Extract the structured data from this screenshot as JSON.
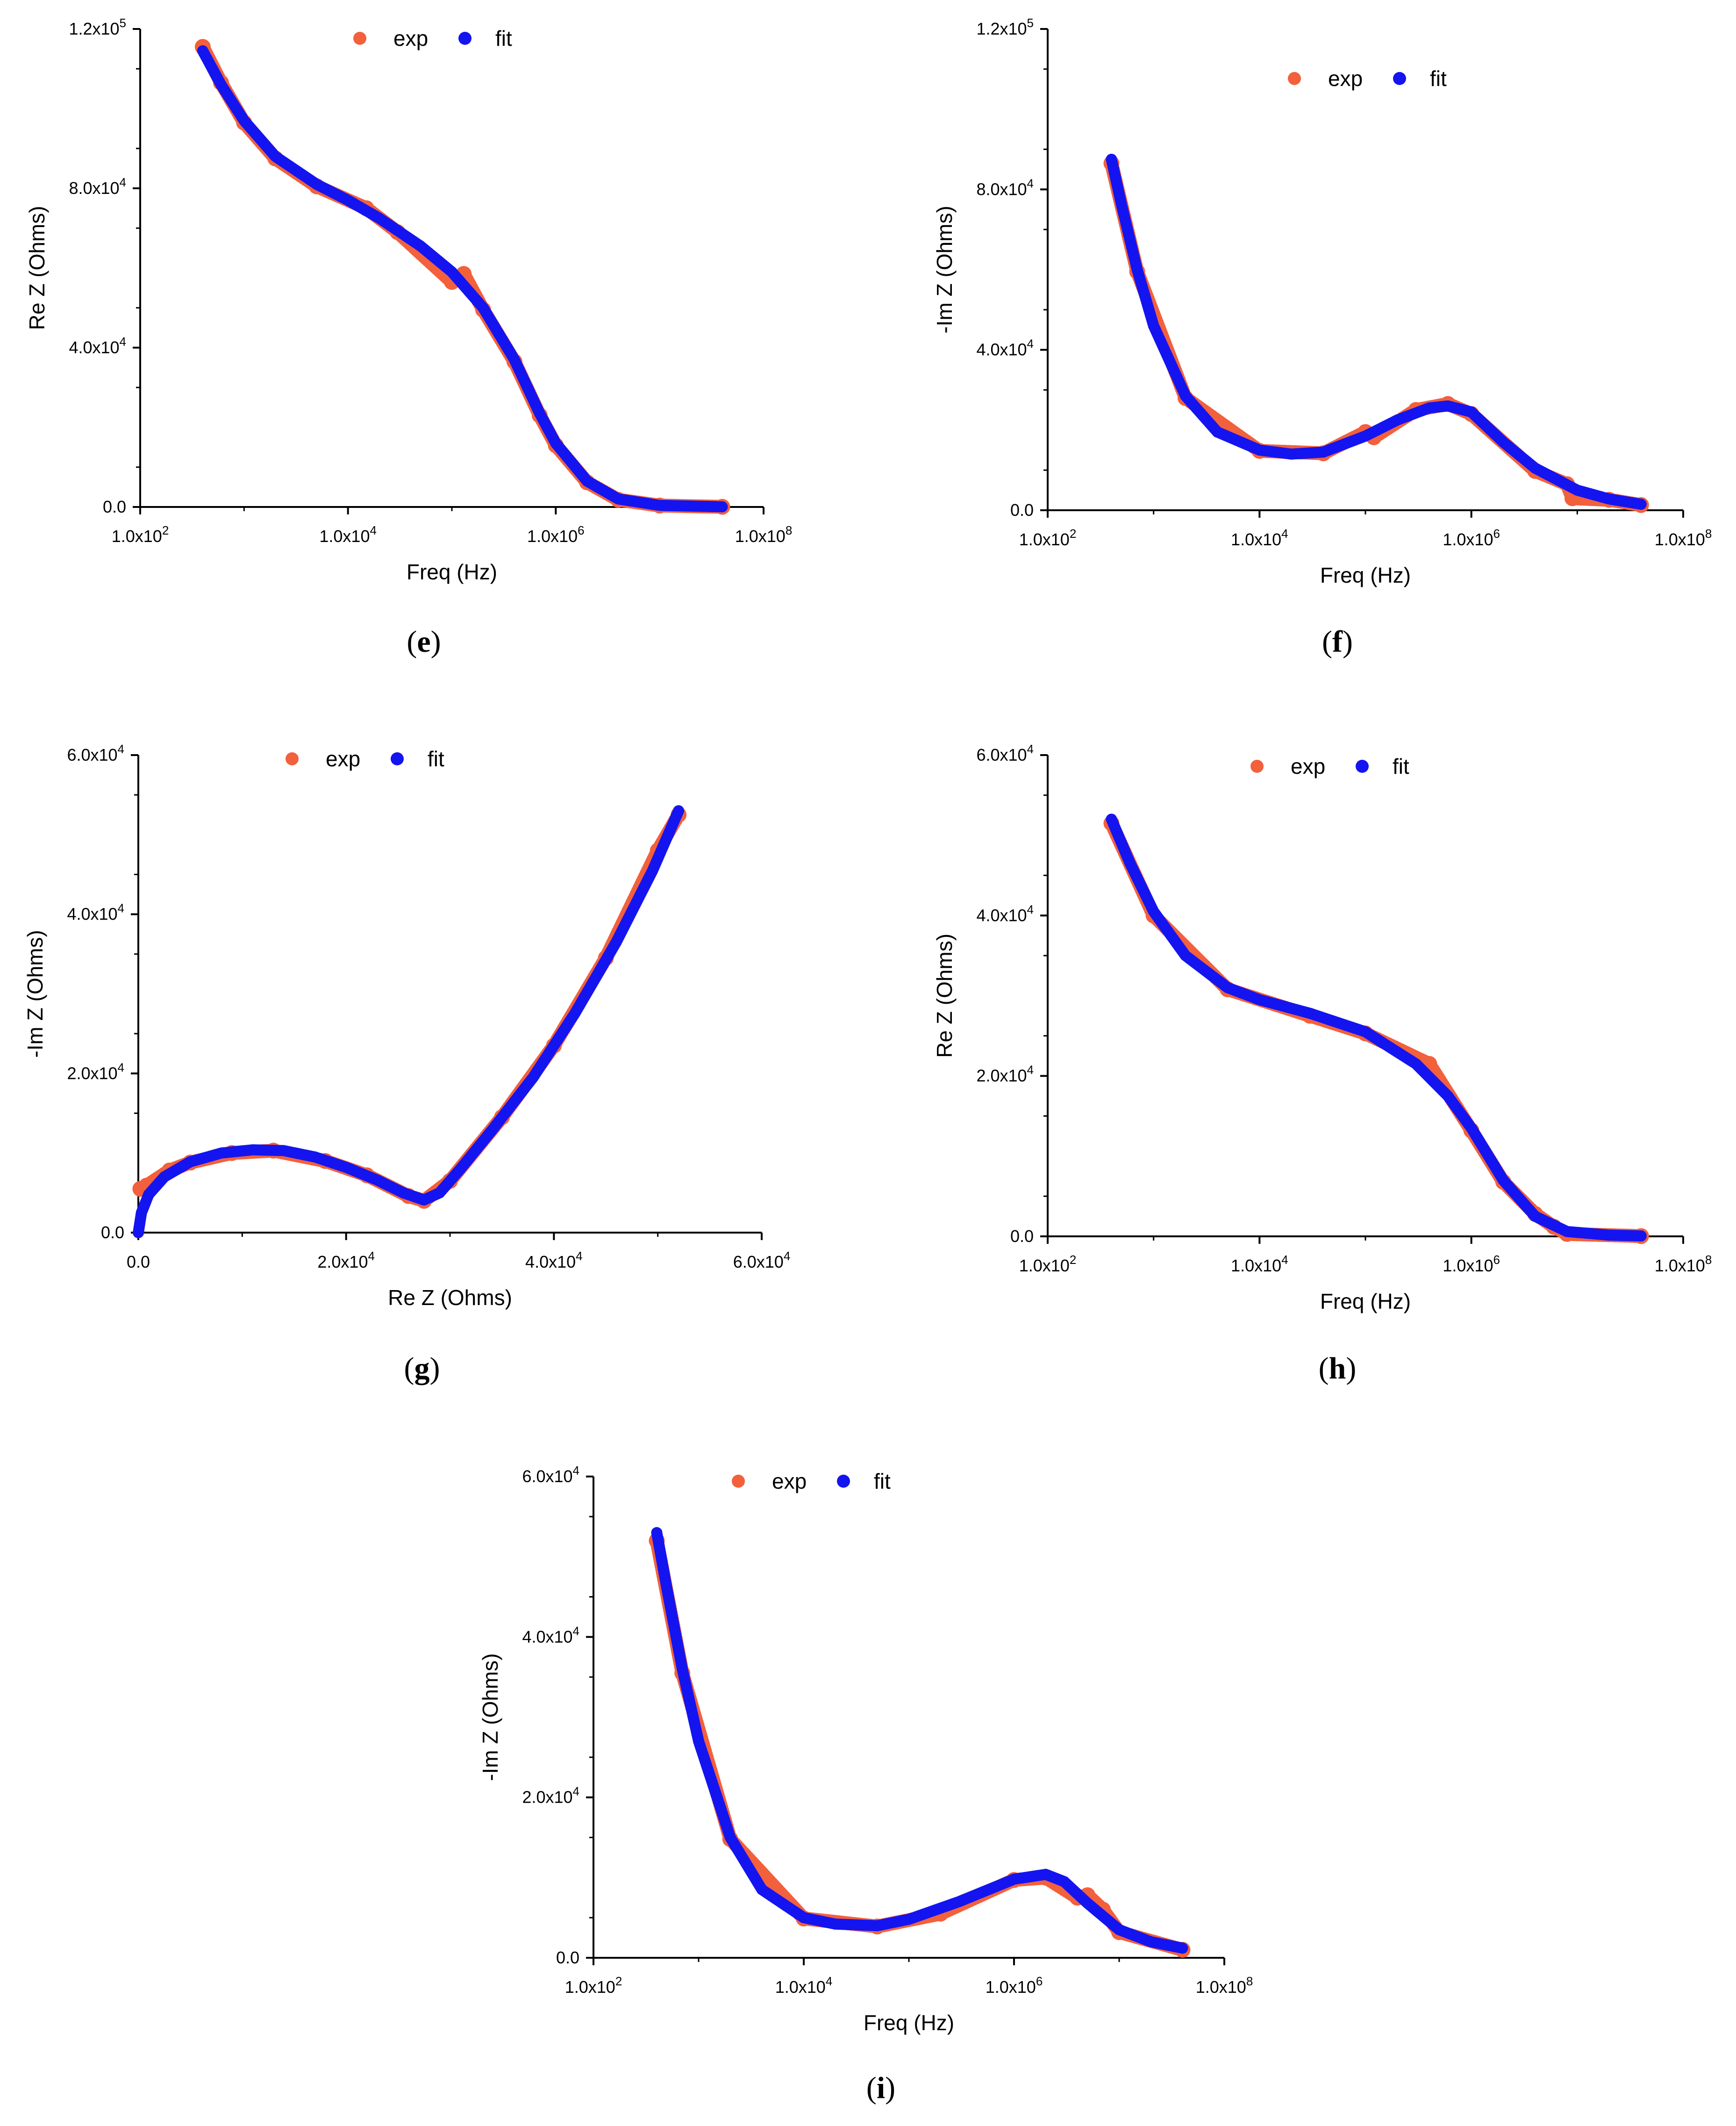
{
  "colors": {
    "exp": "#F2603C",
    "fit": "#1414F0"
  },
  "chart_data": [
    {
      "id": "e",
      "type": "scatter",
      "panel_label": "e",
      "xlabel": "Freq (Hz)",
      "ylabel": "Re Z (Ohms)",
      "xscale": "log",
      "xlim": [
        100,
        100000000
      ],
      "ylim": [
        0,
        120000
      ],
      "xticks": [
        {
          "mant": "1.0x10",
          "exp": "2"
        },
        {
          "mant": "1.0x10",
          "exp": "4"
        },
        {
          "mant": "1.0x10",
          "exp": "6"
        },
        {
          "mant": "1.0x10",
          "exp": "8"
        }
      ],
      "yticks": [
        {
          "mant": "0.0",
          "exp": ""
        },
        {
          "mant": "4.0x10",
          "exp": "4"
        },
        {
          "mant": "8.0x10",
          "exp": "4"
        },
        {
          "mant": "1.2x10",
          "exp": "5"
        }
      ],
      "legend": [
        "exp",
        "fit"
      ],
      "fit": [
        [
          400,
          114500
        ],
        [
          600,
          106000
        ],
        [
          1000,
          97000
        ],
        [
          2000,
          88000
        ],
        [
          5000,
          81000
        ],
        [
          10000,
          77000
        ],
        [
          20000,
          72500
        ],
        [
          50000,
          65500
        ],
        [
          100000,
          59000
        ],
        [
          200000,
          50000
        ],
        [
          400000,
          37000
        ],
        [
          700000,
          23500
        ],
        [
          1000000,
          16000
        ],
        [
          2000000,
          6500
        ],
        [
          4000000,
          2000
        ],
        [
          10000000,
          400
        ],
        [
          40000000,
          50
        ]
      ],
      "exp": [
        [
          400,
          115500
        ],
        [
          600,
          106500
        ],
        [
          1000,
          96500
        ],
        [
          2000,
          87500
        ],
        [
          5000,
          80500
        ],
        [
          15000,
          75000
        ],
        [
          30000,
          69000
        ],
        [
          100000,
          56500
        ],
        [
          130000,
          58500
        ],
        [
          200000,
          49500
        ],
        [
          400000,
          36500
        ],
        [
          700000,
          23000
        ],
        [
          1000000,
          15500
        ],
        [
          2000000,
          6200
        ],
        [
          4000000,
          1800
        ],
        [
          10000000,
          350
        ],
        [
          40000000,
          40
        ]
      ]
    },
    {
      "id": "f",
      "type": "scatter",
      "panel_label": "f",
      "xlabel": "Freq (Hz)",
      "ylabel": "-Im Z (Ohms)",
      "xscale": "log",
      "xlim": [
        100,
        100000000
      ],
      "ylim": [
        0,
        120000
      ],
      "xticks": [
        {
          "mant": "1.0x10",
          "exp": "2"
        },
        {
          "mant": "1.0x10",
          "exp": "4"
        },
        {
          "mant": "1.0x10",
          "exp": "6"
        },
        {
          "mant": "1.0x10",
          "exp": "8"
        }
      ],
      "yticks": [
        {
          "mant": "0.0",
          "exp": ""
        },
        {
          "mant": "4.0x10",
          "exp": "4"
        },
        {
          "mant": "8.0x10",
          "exp": "4"
        },
        {
          "mant": "1.2x10",
          "exp": "5"
        }
      ],
      "legend": [
        "exp",
        "fit"
      ],
      "fit": [
        [
          400,
          87500
        ],
        [
          500,
          76000
        ],
        [
          700,
          60000
        ],
        [
          1000,
          46000
        ],
        [
          2000,
          28500
        ],
        [
          4000,
          19500
        ],
        [
          10000,
          15000
        ],
        [
          20000,
          14000
        ],
        [
          40000,
          14500
        ],
        [
          100000,
          18500
        ],
        [
          200000,
          22500
        ],
        [
          400000,
          25500
        ],
        [
          600000,
          26000
        ],
        [
          1000000,
          24500
        ],
        [
          2000000,
          17000
        ],
        [
          4000000,
          10500
        ],
        [
          10000000,
          5000
        ],
        [
          20000000,
          2800
        ],
        [
          40000000,
          1500
        ]
      ],
      "exp": [
        [
          400,
          86500
        ],
        [
          700,
          59500
        ],
        [
          2000,
          28000
        ],
        [
          10000,
          14800
        ],
        [
          40000,
          14200
        ],
        [
          100000,
          19500
        ],
        [
          120000,
          18200
        ],
        [
          300000,
          25000
        ],
        [
          600000,
          26500
        ],
        [
          1000000,
          24000
        ],
        [
          4000000,
          9800
        ],
        [
          8000000,
          6500
        ],
        [
          9000000,
          3000
        ],
        [
          20000000,
          2600
        ],
        [
          40000000,
          1300
        ]
      ]
    },
    {
      "id": "g",
      "type": "scatter",
      "panel_label": "g",
      "xlabel": "Re Z (Ohms)",
      "ylabel": "-Im Z (Ohms)",
      "xscale": "linear",
      "xlim": [
        0,
        60000
      ],
      "ylim": [
        0,
        60000
      ],
      "xticks": [
        {
          "mant": "0.0",
          "exp": ""
        },
        {
          "mant": "2.0x10",
          "exp": "4"
        },
        {
          "mant": "4.0x10",
          "exp": "4"
        },
        {
          "mant": "6.0x10",
          "exp": "4"
        }
      ],
      "yticks": [
        {
          "mant": "0.0",
          "exp": ""
        },
        {
          "mant": "2.0x10",
          "exp": "4"
        },
        {
          "mant": "4.0x10",
          "exp": "4"
        },
        {
          "mant": "6.0x10",
          "exp": "4"
        }
      ],
      "legend": [
        "exp",
        "fit"
      ],
      "fit": [
        [
          0,
          0
        ],
        [
          300,
          2500
        ],
        [
          1000,
          4800
        ],
        [
          2500,
          7000
        ],
        [
          5000,
          8900
        ],
        [
          8000,
          10000
        ],
        [
          11000,
          10400
        ],
        [
          14000,
          10300
        ],
        [
          17000,
          9500
        ],
        [
          20000,
          8200
        ],
        [
          23000,
          6600
        ],
        [
          25500,
          5000
        ],
        [
          27500,
          4100
        ],
        [
          29000,
          5000
        ],
        [
          31000,
          8000
        ],
        [
          34000,
          12800
        ],
        [
          38000,
          19500
        ],
        [
          42000,
          27500
        ],
        [
          46000,
          36500
        ],
        [
          49500,
          45500
        ],
        [
          52000,
          53000
        ]
      ],
      "exp": [
        [
          200,
          5500
        ],
        [
          800,
          5900
        ],
        [
          3000,
          7800
        ],
        [
          5000,
          8800
        ],
        [
          9000,
          10000
        ],
        [
          13000,
          10300
        ],
        [
          18000,
          9000
        ],
        [
          22000,
          7200
        ],
        [
          26000,
          4600
        ],
        [
          27500,
          4000
        ],
        [
          30000,
          6500
        ],
        [
          35000,
          14500
        ],
        [
          40000,
          23500
        ],
        [
          45000,
          34500
        ],
        [
          50000,
          48000
        ],
        [
          52000,
          52500
        ]
      ]
    },
    {
      "id": "h",
      "type": "scatter",
      "panel_label": "h",
      "xlabel": "Freq (Hz)",
      "ylabel": "Re Z (Ohms)",
      "xscale": "log",
      "xlim": [
        100,
        100000000
      ],
      "ylim": [
        0,
        60000
      ],
      "xticks": [
        {
          "mant": "1.0x10",
          "exp": "2"
        },
        {
          "mant": "1.0x10",
          "exp": "4"
        },
        {
          "mant": "1.0x10",
          "exp": "6"
        },
        {
          "mant": "1.0x10",
          "exp": "8"
        }
      ],
      "yticks": [
        {
          "mant": "0.0",
          "exp": ""
        },
        {
          "mant": "2.0x10",
          "exp": "4"
        },
        {
          "mant": "4.0x10",
          "exp": "4"
        },
        {
          "mant": "6.0x10",
          "exp": "4"
        }
      ],
      "legend": [
        "exp",
        "fit"
      ],
      "fit": [
        [
          400,
          52000
        ],
        [
          600,
          46500
        ],
        [
          1000,
          40500
        ],
        [
          2000,
          35000
        ],
        [
          5000,
          31000
        ],
        [
          10000,
          29500
        ],
        [
          30000,
          27800
        ],
        [
          100000,
          25500
        ],
        [
          300000,
          21500
        ],
        [
          600000,
          17500
        ],
        [
          1000000,
          13500
        ],
        [
          2000000,
          7000
        ],
        [
          4000000,
          2500
        ],
        [
          8000000,
          600
        ],
        [
          20000000,
          150
        ],
        [
          40000000,
          50
        ]
      ],
      "exp": [
        [
          400,
          51500
        ],
        [
          1000,
          40000
        ],
        [
          5000,
          30800
        ],
        [
          30000,
          27500
        ],
        [
          100000,
          25300
        ],
        [
          400000,
          21500
        ],
        [
          1000000,
          13200
        ],
        [
          2000000,
          6800
        ],
        [
          4000000,
          2800
        ],
        [
          6000000,
          1200
        ],
        [
          8000000,
          300
        ],
        [
          40000000,
          30
        ]
      ]
    },
    {
      "id": "i",
      "type": "scatter",
      "panel_label": "i",
      "xlabel": "Freq (Hz)",
      "ylabel": "-Im Z (Ohms)",
      "xscale": "log",
      "xlim": [
        100,
        100000000
      ],
      "ylim": [
        0,
        60000
      ],
      "xticks": [
        {
          "mant": "1.0x10",
          "exp": "2"
        },
        {
          "mant": "1.0x10",
          "exp": "4"
        },
        {
          "mant": "1.0x10",
          "exp": "6"
        },
        {
          "mant": "1.0x10",
          "exp": "8"
        }
      ],
      "yticks": [
        {
          "mant": "0.0",
          "exp": ""
        },
        {
          "mant": "2.0x10",
          "exp": "4"
        },
        {
          "mant": "4.0x10",
          "exp": "4"
        },
        {
          "mant": "6.0x10",
          "exp": "4"
        }
      ],
      "legend": [
        "exp",
        "fit"
      ],
      "fit": [
        [
          400,
          53000
        ],
        [
          500,
          46000
        ],
        [
          700,
          36000
        ],
        [
          1000,
          27000
        ],
        [
          2000,
          15000
        ],
        [
          4000,
          8500
        ],
        [
          10000,
          5000
        ],
        [
          20000,
          4200
        ],
        [
          50000,
          4000
        ],
        [
          100000,
          4800
        ],
        [
          300000,
          7000
        ],
        [
          1000000,
          9800
        ],
        [
          2000000,
          10400
        ],
        [
          3000000,
          9500
        ],
        [
          5000000,
          6800
        ],
        [
          10000000,
          3500
        ],
        [
          20000000,
          2000
        ],
        [
          40000000,
          1200
        ]
      ],
      "exp": [
        [
          400,
          52000
        ],
        [
          700,
          35500
        ],
        [
          2000,
          14800
        ],
        [
          10000,
          4900
        ],
        [
          50000,
          3900
        ],
        [
          200000,
          5500
        ],
        [
          1000000,
          9700
        ],
        [
          2000000,
          10000
        ],
        [
          4000000,
          7500
        ],
        [
          5000000,
          7800
        ],
        [
          7000000,
          6000
        ],
        [
          10000000,
          3200
        ],
        [
          40000000,
          1000
        ]
      ]
    }
  ]
}
